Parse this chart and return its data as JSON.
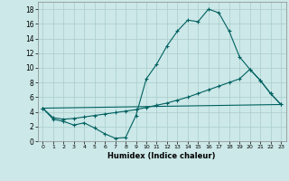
{
  "xlabel": "Humidex (Indice chaleur)",
  "xlim": [
    -0.5,
    23.5
  ],
  "ylim": [
    0,
    19
  ],
  "xticks": [
    0,
    1,
    2,
    3,
    4,
    5,
    6,
    7,
    8,
    9,
    10,
    11,
    12,
    13,
    14,
    15,
    16,
    17,
    18,
    19,
    20,
    21,
    22,
    23
  ],
  "yticks": [
    0,
    2,
    4,
    6,
    8,
    10,
    12,
    14,
    16,
    18
  ],
  "bg_color": "#cce8e8",
  "grid_color": "#aacccc",
  "line_color": "#006060",
  "line1_x": [
    0,
    1,
    2,
    3,
    4,
    5,
    6,
    7,
    8,
    9,
    10,
    11,
    12,
    13,
    14,
    15,
    16,
    17,
    18,
    19,
    20,
    21,
    22,
    23
  ],
  "line1_y": [
    4.5,
    3.0,
    2.7,
    2.2,
    2.5,
    1.8,
    1.0,
    0.4,
    0.5,
    3.5,
    8.5,
    10.5,
    13.0,
    15.0,
    16.5,
    16.3,
    18.0,
    17.5,
    15.0,
    11.5,
    9.8,
    8.3,
    6.5,
    5.0
  ],
  "line2_x": [
    0,
    23
  ],
  "line2_y": [
    4.5,
    5.0
  ],
  "line3_x": [
    0,
    1,
    2,
    3,
    4,
    5,
    6,
    7,
    8,
    9,
    10,
    11,
    12,
    13,
    14,
    15,
    16,
    17,
    18,
    19,
    20,
    21,
    22,
    23
  ],
  "line3_y": [
    4.5,
    3.2,
    3.0,
    3.1,
    3.3,
    3.5,
    3.7,
    3.9,
    4.1,
    4.3,
    4.6,
    4.9,
    5.2,
    5.6,
    6.0,
    6.5,
    7.0,
    7.5,
    8.0,
    8.5,
    9.8,
    8.3,
    6.5,
    5.0
  ]
}
